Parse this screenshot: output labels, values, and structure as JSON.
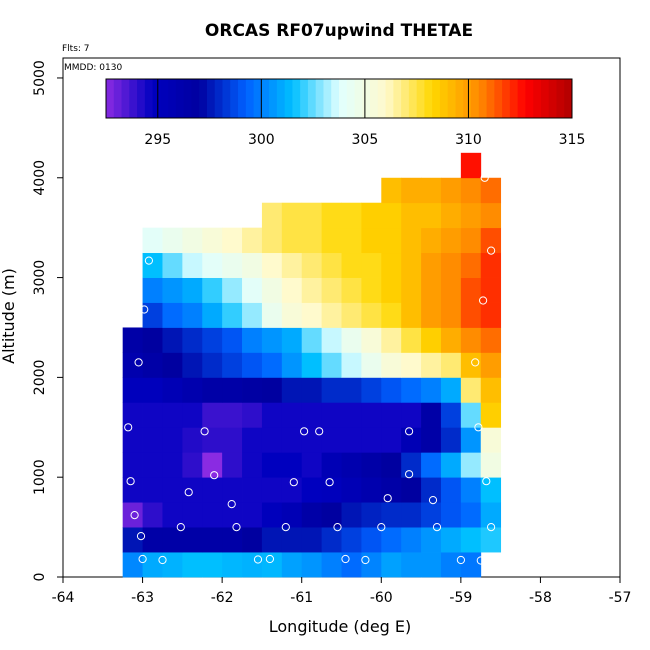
{
  "chart_data": {
    "type": "heatmap",
    "title": "ORCAS RF07upwind THETAE",
    "flts_label": "Flts: 7",
    "mmdd_label": "MMDD: 0130",
    "xlabel": "Longitude (deg E)",
    "ylabel": "Altitude (m)",
    "xlim": [
      -64,
      -57
    ],
    "ylim": [
      0,
      5200
    ],
    "x_ticks": [
      -64,
      -63,
      -62,
      -61,
      -60,
      -59,
      -58,
      -57
    ],
    "x_tick_labels": [
      "-64",
      "-63",
      "-62",
      "-61",
      "-60",
      "-59",
      "-58",
      "-57"
    ],
    "y_ticks": [
      0,
      1000,
      2000,
      3000,
      4000,
      5000
    ],
    "y_tick_labels": [
      "0",
      "1000",
      "2000",
      "3000",
      "4000",
      "5000"
    ],
    "colorbar": {
      "min": 292.5,
      "max": 315,
      "ticks": [
        295,
        300,
        305,
        310,
        315
      ],
      "tick_labels": [
        "295",
        "300",
        "305",
        "310",
        "315"
      ],
      "stops": [
        "#8a2be2",
        "#0000c0",
        "#0000a0",
        "#0060ff",
        "#00bfff",
        "#e0ffff",
        "#fffacd",
        "#ffd700",
        "#ff8c00",
        "#ff0000",
        "#b00000"
      ]
    },
    "grid": {
      "x0": -63.25,
      "dx": 0.25,
      "y0": 0,
      "dy": 250,
      "rows": [
        {
          "y": 0,
          "c": 0,
          "v": [
            300.2,
            301,
            301.2,
            301.5,
            301.5,
            301.3,
            301.2,
            301.3,
            300.8,
            300.5,
            300,
            299.5,
            300.1,
            300.8,
            300.5,
            300.5,
            300,
            299.8
          ]
        },
        {
          "y": 250,
          "c": 0,
          "v": [
            297.5,
            296.5,
            296.5,
            296.5,
            296.5,
            296.5,
            297,
            297.5,
            297.5,
            297.5,
            298,
            298.5,
            299,
            299.5,
            300,
            300.5,
            301,
            301.5,
            301.8
          ]
        },
        {
          "y": 500,
          "c": 0,
          "v": [
            293,
            294,
            294.5,
            294.5,
            294.5,
            294.5,
            294.5,
            295,
            295.5,
            296.5,
            297,
            297.5,
            297.8,
            298,
            298,
            298.5,
            299,
            299.5,
            301
          ]
        },
        {
          "y": 750,
          "c": 0,
          "v": [
            294.5,
            294.5,
            294.5,
            294.5,
            294.5,
            294.5,
            294.5,
            294.5,
            294.5,
            294.8,
            295,
            295.5,
            296,
            296.5,
            297,
            298,
            299,
            300,
            301.5
          ]
        },
        {
          "y": 1000,
          "c": 0,
          "v": [
            294.5,
            294.5,
            294.5,
            294,
            292.5,
            294,
            294.5,
            294.8,
            294.8,
            294.5,
            295.5,
            296,
            296.5,
            297,
            298,
            299.5,
            301,
            303,
            305
          ]
        },
        {
          "y": 1250,
          "c": 0,
          "v": [
            294.5,
            294.5,
            294.5,
            294.2,
            294,
            294,
            294.5,
            294.5,
            294.5,
            294.5,
            294.5,
            294.5,
            294.5,
            294.5,
            295.5,
            296.5,
            298,
            300.5,
            305.5
          ]
        },
        {
          "y": 1500,
          "c": 0,
          "v": [
            294.5,
            294.5,
            294.5,
            294.5,
            293.8,
            293.8,
            294,
            294.5,
            294.5,
            294.5,
            294.5,
            294.5,
            294.5,
            294.5,
            294.5,
            296.5,
            298.5,
            302.5,
            308.5
          ]
        },
        {
          "y": 1750,
          "c": 0,
          "v": [
            295,
            295,
            295.5,
            296,
            296.5,
            296.5,
            296.8,
            297,
            297.5,
            297.5,
            298,
            298,
            298.5,
            299,
            299.5,
            300,
            301,
            307,
            309
          ]
        },
        {
          "y": 2000,
          "c": 0,
          "v": [
            296,
            296.5,
            297,
            297.5,
            298,
            298.5,
            299,
            299.5,
            300.5,
            301.5,
            302.5,
            303.5,
            304.5,
            305.5,
            306,
            306.5,
            307,
            309,
            310
          ]
        },
        {
          "y": 2250,
          "c": 0,
          "v": [
            296.5,
            297,
            297.5,
            298,
            298.5,
            299,
            300,
            300.5,
            301,
            302.5,
            303.5,
            304.5,
            305.5,
            306.5,
            307.5,
            308.5,
            309.5,
            310.5,
            311
          ]
        },
        {
          "y": 2500,
          "c": 1,
          "v": [
            298.5,
            299.5,
            300,
            301,
            302,
            303,
            304.5,
            305.5,
            306,
            306.5,
            307,
            307.5,
            308,
            309,
            310,
            310.5,
            311.5,
            312
          ]
        },
        {
          "y": 2750,
          "c": 1,
          "v": [
            300,
            300.5,
            301,
            302,
            303,
            304,
            305,
            306,
            306.5,
            307,
            307.5,
            308,
            308.5,
            309,
            310,
            310.5,
            311.5,
            312
          ]
        },
        {
          "y": 3000,
          "c": 1,
          "v": [
            301.5,
            302.5,
            303.5,
            304,
            304.5,
            305,
            306,
            306.5,
            307,
            307.5,
            308,
            308,
            308.5,
            309,
            310,
            310.5,
            311,
            312
          ]
        },
        {
          "y": 3250,
          "c": 1,
          "v": [
            304,
            304.5,
            305,
            305.5,
            306,
            306.5,
            307,
            307.5,
            307.5,
            308,
            308,
            308.5,
            308.5,
            309,
            309.5,
            310,
            310.5,
            311.5
          ]
        },
        {
          "y": 3500,
          "c": 7,
          "v": [
            307,
            307.5,
            307.5,
            308,
            308,
            308.5,
            308.5,
            309,
            309,
            309.5,
            310,
            310.5
          ]
        },
        {
          "y": 3750,
          "c": 13,
          "v": [
            309,
            309.5,
            309.5,
            310,
            310.5,
            311
          ]
        },
        {
          "y": 4000,
          "c": 17,
          "v": [
            312.5
          ]
        }
      ]
    },
    "points": [
      {
        "x": -63.0,
        "y": 180
      },
      {
        "x": -62.75,
        "y": 170
      },
      {
        "x": -61.55,
        "y": 175
      },
      {
        "x": -61.4,
        "y": 180
      },
      {
        "x": -60.45,
        "y": 180
      },
      {
        "x": -60.2,
        "y": 170
      },
      {
        "x": -59.0,
        "y": 170
      },
      {
        "x": -58.75,
        "y": 165
      },
      {
        "x": -63.02,
        "y": 410
      },
      {
        "x": -63.1,
        "y": 620
      },
      {
        "x": -62.52,
        "y": 500
      },
      {
        "x": -61.82,
        "y": 500
      },
      {
        "x": -61.2,
        "y": 500
      },
      {
        "x": -60.55,
        "y": 500
      },
      {
        "x": -60.0,
        "y": 500
      },
      {
        "x": -59.3,
        "y": 500
      },
      {
        "x": -58.62,
        "y": 500
      },
      {
        "x": -62.42,
        "y": 850
      },
      {
        "x": -61.88,
        "y": 730
      },
      {
        "x": -59.92,
        "y": 790
      },
      {
        "x": -59.35,
        "y": 770
      },
      {
        "x": -58.68,
        "y": 960
      },
      {
        "x": -63.15,
        "y": 960
      },
      {
        "x": -62.1,
        "y": 1020
      },
      {
        "x": -61.1,
        "y": 950
      },
      {
        "x": -60.65,
        "y": 950
      },
      {
        "x": -59.65,
        "y": 1030
      },
      {
        "x": -63.18,
        "y": 1500
      },
      {
        "x": -62.22,
        "y": 1460
      },
      {
        "x": -60.97,
        "y": 1460
      },
      {
        "x": -60.78,
        "y": 1460
      },
      {
        "x": -59.65,
        "y": 1460
      },
      {
        "x": -58.78,
        "y": 1500
      },
      {
        "x": -63.05,
        "y": 2150
      },
      {
        "x": -58.82,
        "y": 2150
      },
      {
        "x": -62.98,
        "y": 2680
      },
      {
        "x": -58.72,
        "y": 2770
      },
      {
        "x": -62.92,
        "y": 3170
      },
      {
        "x": -58.62,
        "y": 3270
      },
      {
        "x": -58.7,
        "y": 4000
      }
    ]
  }
}
